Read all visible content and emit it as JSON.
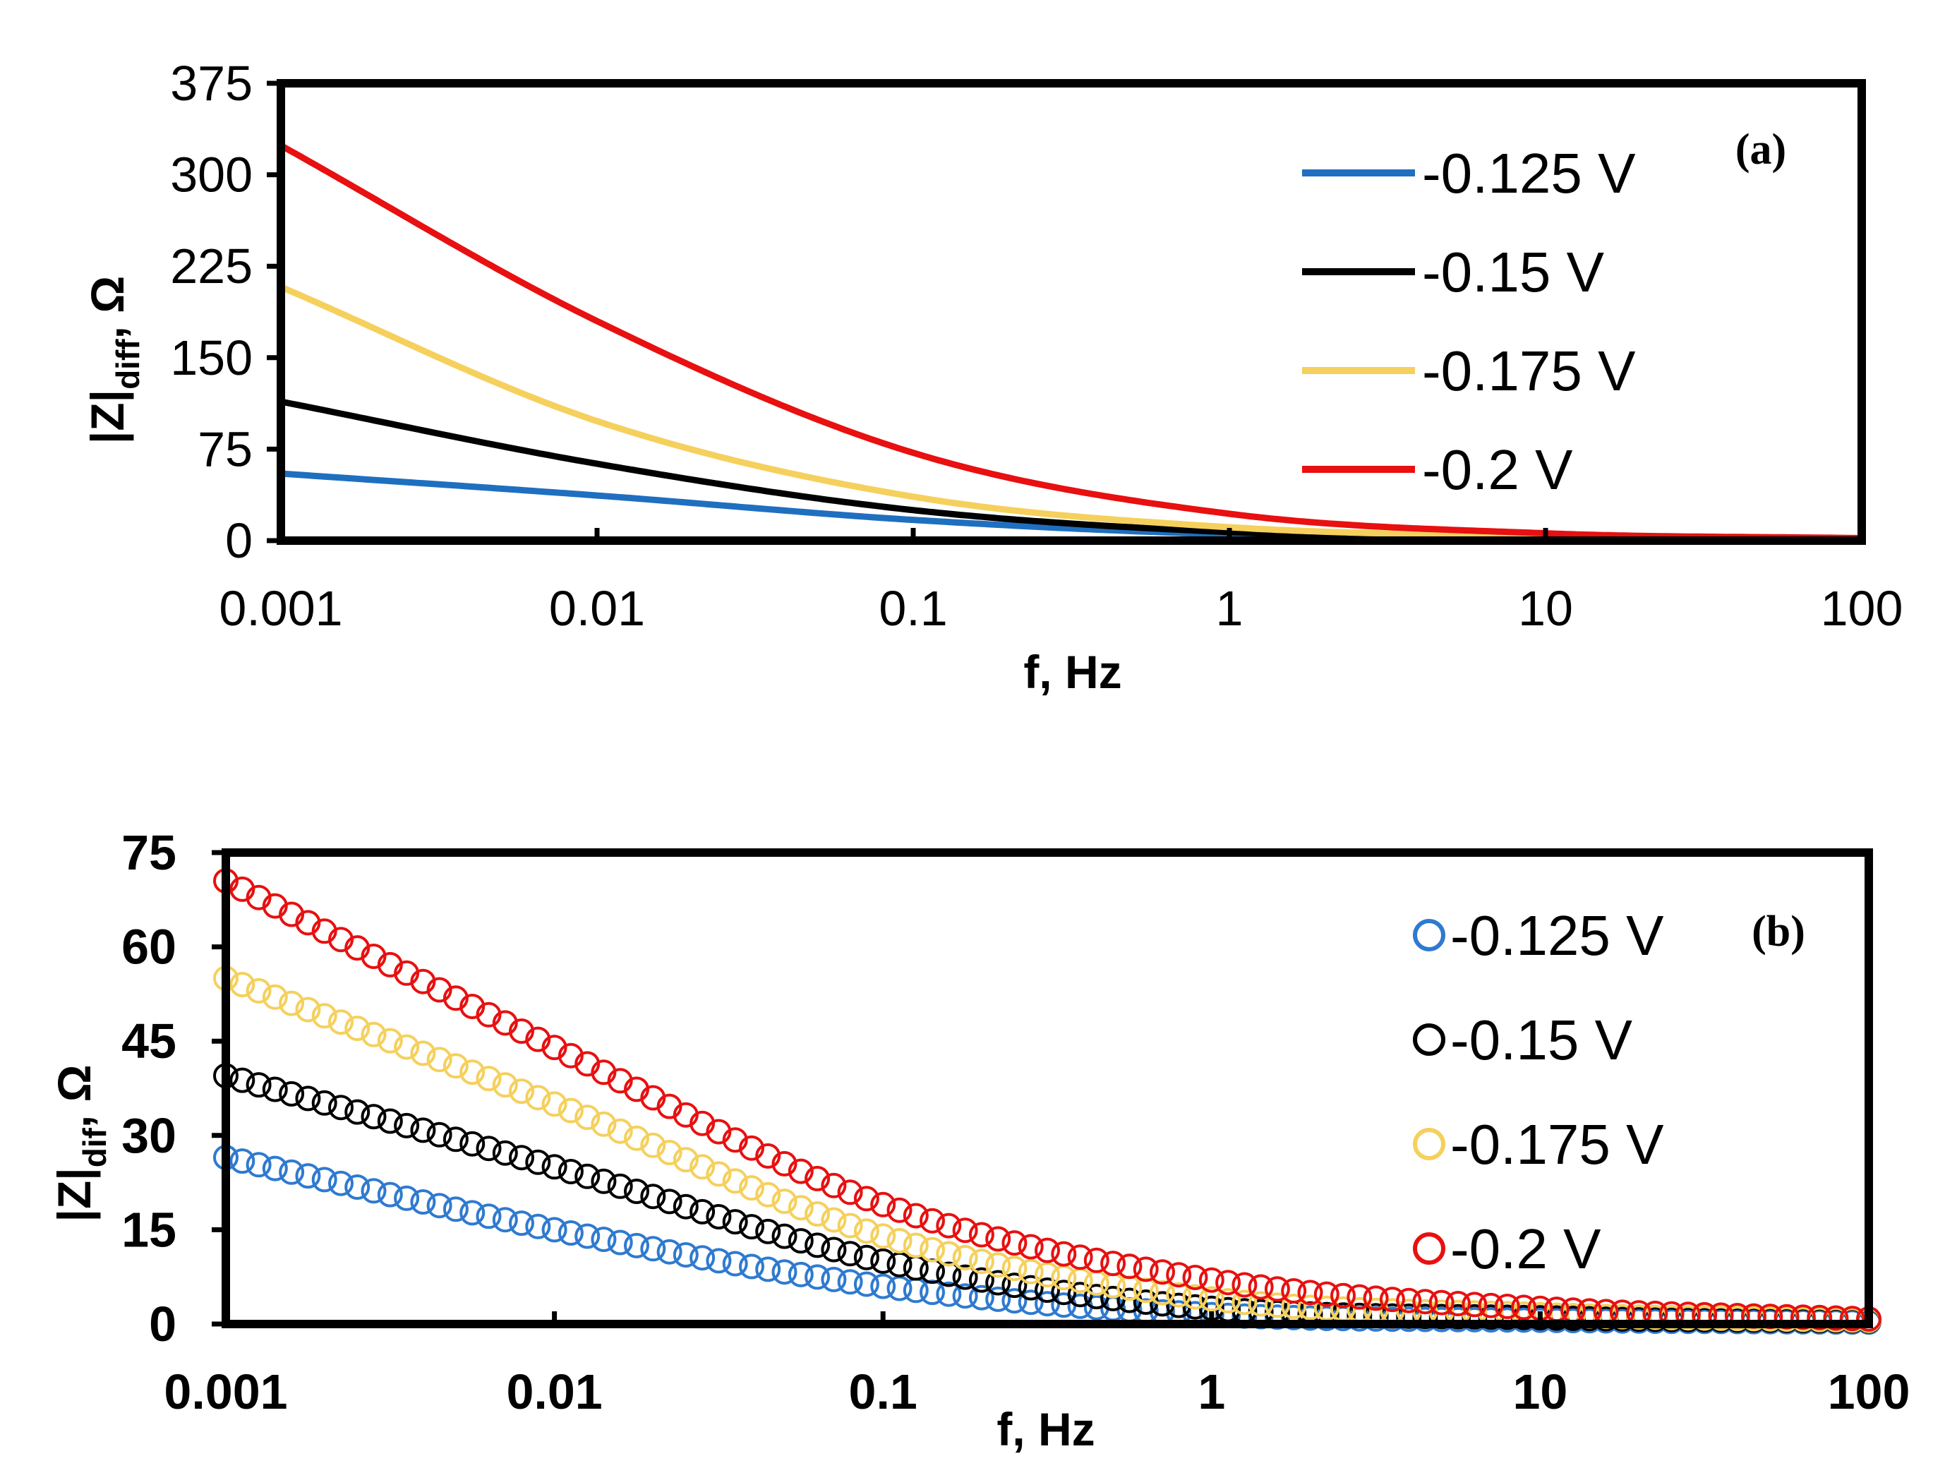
{
  "chart_data": [
    {
      "type": "line",
      "panel_label": "(a)",
      "xlabel": "f, Hz",
      "ylabel": "|Z|",
      "ylabel_sub": "diff",
      "ylabel_unit": ", Ω",
      "xscale": "log",
      "xlim": [
        0.001,
        100
      ],
      "ylim": [
        0,
        375
      ],
      "x_ticks": [
        "0.001",
        "0.01",
        "0.1",
        "1",
        "10",
        "100"
      ],
      "y_ticks": [
        "0",
        "75",
        "150",
        "225",
        "300",
        "375"
      ],
      "legend_position": "top-right",
      "x": [
        0.001,
        0.01,
        0.1,
        1,
        10,
        100
      ],
      "series": [
        {
          "name": "-0.125 V",
          "color": "#1f6fc0",
          "values": [
            55,
            37,
            17,
            5,
            1.5,
            1
          ]
        },
        {
          "name": "-0.15 V",
          "color": "#000000",
          "values": [
            114,
            63,
            25,
            7,
            2,
            1
          ]
        },
        {
          "name": "-0.175 V",
          "color": "#f5d05c",
          "values": [
            208,
            98,
            36,
            11,
            3.5,
            1
          ]
        },
        {
          "name": "-0.2 V",
          "color": "#e81010",
          "values": [
            324,
            180,
            72,
            22,
            6,
            2
          ]
        }
      ]
    },
    {
      "type": "scatter",
      "panel_label": "(b)",
      "xlabel": "f, Hz",
      "ylabel": "|Z|",
      "ylabel_sub": "dif",
      "ylabel_unit": ", Ω",
      "xscale": "log",
      "xlim": [
        0.001,
        100
      ],
      "ylim": [
        0,
        75
      ],
      "x_ticks": [
        "0.001",
        "0.01",
        "0.1",
        "1",
        "10",
        "100"
      ],
      "y_ticks": [
        "0",
        "15",
        "30",
        "45",
        "60",
        "75"
      ],
      "legend_position": "top-right",
      "x": [
        0.001,
        0.01,
        0.1,
        1,
        10,
        100
      ],
      "series": [
        {
          "name": "-0.125 V",
          "color": "#2f7ad0",
          "values": [
            26.5,
            15,
            6,
            1.5,
            0.6,
            0.3
          ]
        },
        {
          "name": "-0.15 V",
          "color": "#000000",
          "values": [
            39.5,
            25,
            10,
            2.5,
            1.0,
            0.5
          ]
        },
        {
          "name": "-0.175 V",
          "color": "#f5d05c",
          "values": [
            55,
            35,
            14,
            4,
            1.5,
            0.6
          ]
        },
        {
          "name": "-0.2 V",
          "color": "#e81010",
          "values": [
            70.5,
            44,
            19,
            7,
            2.5,
            0.8
          ]
        }
      ]
    }
  ]
}
